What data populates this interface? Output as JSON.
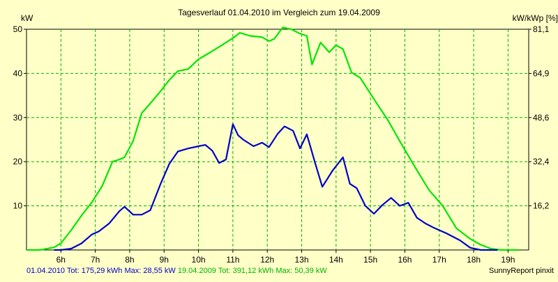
{
  "chart_data": {
    "type": "line",
    "title": "Tagesverlauf 01.04.2010 im Vergleich zum 19.04.2009",
    "ylabel_left": "kW",
    "ylabel_right": "kW/kWp [%]",
    "ylim": [
      0,
      50
    ],
    "y_ticks_left": [
      "10",
      "20",
      "30",
      "40",
      "50"
    ],
    "y_ticks_right": [
      "16,2",
      "32,4",
      "48,6",
      "64,9",
      "81,1"
    ],
    "xlim": [
      5.0,
      19.6
    ],
    "x_ticks": [
      "6h",
      "7h",
      "8h",
      "9h",
      "10h",
      "11h",
      "12h",
      "13h",
      "14h",
      "15h",
      "16h",
      "17h",
      "18h",
      "19h"
    ],
    "grid": true,
    "series": [
      {
        "name": "01.04.2010",
        "color": "#0000c8",
        "x": [
          5.8,
          6.0,
          6.3,
          6.6,
          6.9,
          7.1,
          7.4,
          7.7,
          7.85,
          8.1,
          8.35,
          8.6,
          8.9,
          9.15,
          9.4,
          9.7,
          10.0,
          10.2,
          10.4,
          10.6,
          10.8,
          11.0,
          11.15,
          11.3,
          11.6,
          11.85,
          12.05,
          12.3,
          12.5,
          12.75,
          12.95,
          13.15,
          13.4,
          13.6,
          13.9,
          14.2,
          14.4,
          14.6,
          14.85,
          15.1,
          15.35,
          15.6,
          15.85,
          16.1,
          16.35,
          16.6,
          16.85,
          17.2,
          17.6,
          17.9,
          18.2,
          18.4,
          18.7
        ],
        "y": [
          0,
          0,
          0.3,
          1.5,
          3.5,
          4.2,
          6.0,
          8.8,
          9.8,
          8.0,
          8.0,
          9.0,
          15.0,
          19.5,
          22.3,
          23.0,
          23.5,
          23.8,
          22.5,
          19.7,
          20.5,
          28.5,
          26.0,
          25.0,
          23.5,
          24.3,
          23.3,
          26.3,
          28.0,
          27.0,
          23.0,
          26.2,
          19.5,
          14.3,
          18.0,
          21.0,
          15.0,
          14.0,
          10.0,
          8.2,
          10.2,
          11.8,
          10.0,
          10.7,
          7.3,
          6.0,
          5.0,
          3.8,
          2.2,
          0.5,
          0,
          0,
          0
        ]
      },
      {
        "name": "19.04.2009",
        "color": "#00e600",
        "x": [
          5.0,
          5.4,
          5.8,
          6.0,
          6.3,
          6.6,
          6.9,
          7.2,
          7.5,
          7.7,
          7.85,
          8.1,
          8.35,
          8.6,
          8.9,
          9.15,
          9.4,
          9.7,
          10.0,
          10.35,
          10.7,
          11.0,
          11.2,
          11.5,
          11.85,
          12.05,
          12.2,
          12.45,
          12.7,
          12.95,
          13.15,
          13.3,
          13.55,
          13.8,
          14.0,
          14.2,
          14.45,
          14.7,
          14.95,
          15.2,
          15.5,
          15.9,
          16.3,
          16.7,
          17.1,
          17.5,
          17.9,
          18.2,
          18.5,
          18.8,
          19.0,
          19.3
        ],
        "y": [
          0,
          0,
          0.6,
          1.5,
          4.5,
          7.8,
          10.8,
          14.5,
          20.0,
          20.5,
          21.0,
          24.7,
          31.0,
          33.2,
          36.0,
          38.5,
          40.5,
          41.0,
          43.2,
          44.8,
          46.5,
          48.0,
          49.2,
          48.5,
          48.2,
          47.3,
          47.8,
          50.4,
          50.0,
          49.0,
          48.5,
          42.0,
          47.0,
          44.8,
          46.4,
          45.5,
          40.2,
          39.0,
          36.0,
          33.0,
          29.5,
          24.0,
          18.7,
          13.6,
          10.0,
          4.9,
          2.5,
          1.2,
          0.3,
          0,
          0,
          0
        ]
      }
    ],
    "footer": {
      "series1_label": "01.04.2010 Tot: 175,29 kWh Max: 28,55 kW",
      "series2_label": "19.04.2009 Tot: 391,12 kWh Max: 50,39 kW",
      "brand": "SunnyReport pinxit"
    }
  }
}
